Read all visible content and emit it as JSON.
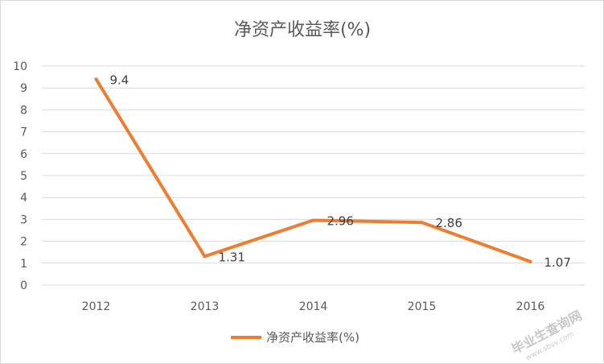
{
  "chart_data": {
    "type": "line",
    "title": "净资产收益率(%)",
    "categories": [
      "2012",
      "2013",
      "2014",
      "2015",
      "2016"
    ],
    "series": [
      {
        "name": "净资产收益率(%)",
        "values": [
          9.4,
          1.31,
          2.96,
          2.86,
          1.07
        ],
        "data_labels": [
          "9.4",
          "1.31",
          "2.96",
          "2.86",
          "1.07"
        ]
      }
    ],
    "ylim": [
      0,
      10
    ],
    "yticks": [
      "0",
      "1",
      "2",
      "3",
      "4",
      "5",
      "6",
      "7",
      "8",
      "9",
      "10"
    ],
    "grid": true,
    "legend_position": "bottom",
    "color": "#ED7D31",
    "gridline_color": "#d9d9d9"
  },
  "watermark": {
    "main": "毕业生查询网",
    "sub": "www.sbvv.com"
  }
}
